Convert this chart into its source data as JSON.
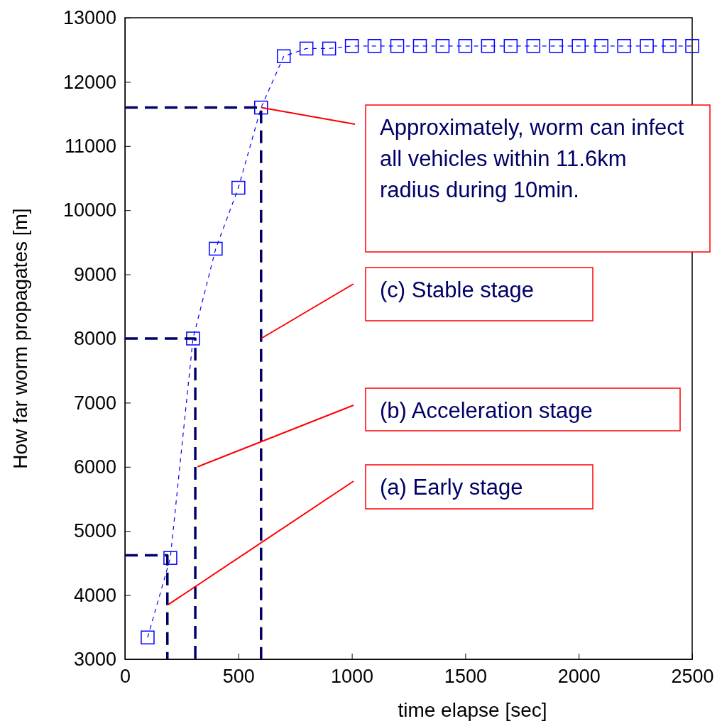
{
  "chart_data": {
    "type": "line",
    "xlabel": "time elapse [sec]",
    "ylabel": "How far worm propagates [m]",
    "xlim": [
      0,
      2500
    ],
    "xticks": [
      0,
      500,
      1000,
      1500,
      2000,
      2500
    ],
    "ylim": [
      3000,
      13000
    ],
    "yticks": [
      3000,
      4000,
      5000,
      6000,
      7000,
      8000,
      9000,
      10000,
      11000,
      12000,
      13000
    ],
    "grid": false,
    "series": [
      {
        "color": "#0000ff",
        "marker": "square",
        "line_style": "dashed",
        "x": [
          100,
          200,
          300,
          400,
          500,
          600,
          700,
          800,
          900,
          1000,
          1100,
          1200,
          1300,
          1400,
          1500,
          1600,
          1700,
          1800,
          1900,
          2000,
          2100,
          2200,
          2300,
          2400,
          2500
        ],
        "values": [
          3340,
          4580,
          8000,
          9400,
          10350,
          11600,
          12400,
          12520,
          12520,
          12560,
          12560,
          12560,
          12560,
          12560,
          12560,
          12560,
          12560,
          12560,
          12560,
          12560,
          12560,
          12560,
          12560,
          12560,
          12560
        ]
      },
      {
        "color": "#000066",
        "marker": "none",
        "line_style": "dashed",
        "x": [
          0,
          187,
          187
        ],
        "values": [
          4620,
          4620,
          3000
        ]
      },
      {
        "color": "#000066",
        "marker": "none",
        "line_style": "dashed",
        "x": [
          0,
          310,
          310
        ],
        "values": [
          8000,
          8000,
          3000
        ]
      },
      {
        "color": "#000066",
        "marker": "none",
        "line_style": "dashed",
        "x": [
          0,
          600,
          600
        ],
        "values": [
          11600,
          11600,
          3000
        ]
      }
    ],
    "annotations": [
      {
        "text": "Approximately, worm can infect all vehicles within 11.6km radius during 10min.",
        "x": 600,
        "y": 11600
      },
      {
        "text": "(c) Stable stage",
        "x": 600,
        "y": 8000
      },
      {
        "text": "(b) Acceleration stage",
        "x": 320,
        "y": 6000
      },
      {
        "text": "(a) Early stage",
        "x": 190,
        "y": 3850
      }
    ]
  }
}
